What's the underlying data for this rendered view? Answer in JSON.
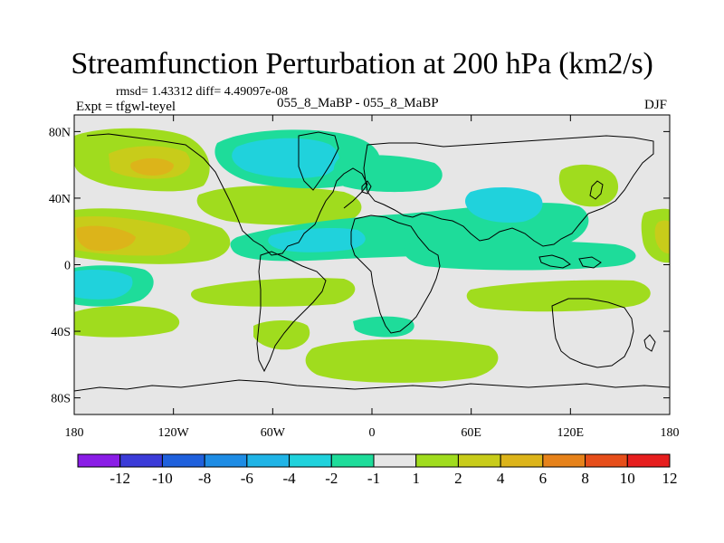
{
  "title": "Streamfunction Perturbation at 200 hPa (km2/s)",
  "stats": "rmsd= 1.43312 diff= 4.49097e-08",
  "experiment": "Expt = tfgwl-teyel",
  "comparison": "055_8_MaBP - 055_8_MaBP",
  "season": "DJF",
  "chart_data": {
    "type": "filled-contour-map",
    "projection": "cylindrical-equidistant",
    "variable": "Streamfunction Perturbation",
    "level": "200 hPa",
    "units": "km2/s",
    "x_ticks": [
      "180",
      "120W",
      "60W",
      "0",
      "60E",
      "120E",
      "180"
    ],
    "y_ticks": [
      "80N",
      "40N",
      "0",
      "40S",
      "80S"
    ],
    "lon_range": [
      -180,
      180
    ],
    "lat_range": [
      -90,
      90
    ],
    "colorbar": {
      "labels": [
        "-12",
        "-10",
        "-8",
        "-6",
        "-4",
        "-2",
        "-1",
        "1",
        "2",
        "4",
        "6",
        "8",
        "10",
        "12"
      ],
      "colors": [
        "#8a1de6",
        "#3b3bd8",
        "#1f60dc",
        "#1e8ce4",
        "#20b4e6",
        "#20d2dc",
        "#1edc9a",
        "#e6e6e6",
        "#a0dc1e",
        "#c8cc1a",
        "#dcb41a",
        "#e6821a",
        "#e64e1a",
        "#e61e1e"
      ]
    }
  }
}
